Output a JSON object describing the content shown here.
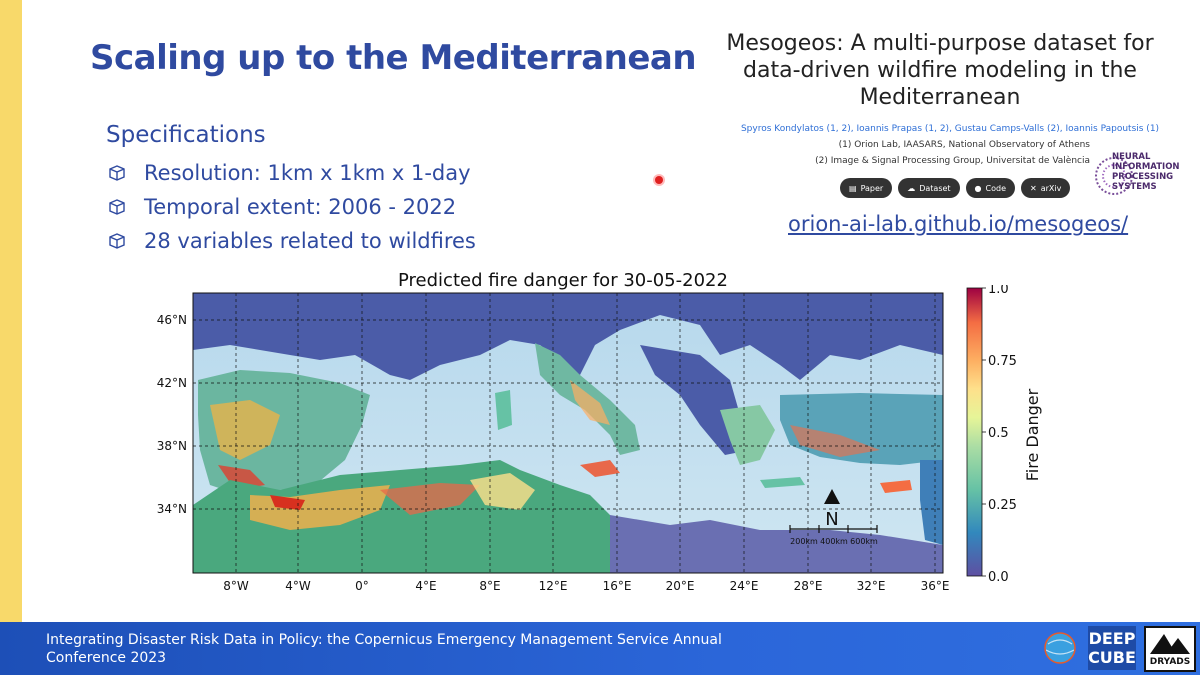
{
  "slide": {
    "title": "Scaling up to the Mediterranean",
    "specifications": {
      "heading": "Specifications",
      "items": [
        "Resolution: 1km x 1km x 1-day",
        "Temporal extent: 2006 - 2022",
        "28 variables related to wildfires"
      ]
    }
  },
  "paper": {
    "title_lines": [
      "Mesogeos: A multi-purpose dataset for",
      "data-driven wildfire modeling in the",
      "Mediterranean"
    ],
    "authors": "Spyros Kondylatos (1, 2), Ioannis Prapas (1, 2), Gustau Camps-Valls (2), Ioannis Papoutsis (1)",
    "affiliation_1": "(1) Orion Lab, IAASARS, National Observatory of Athens",
    "affiliation_2": "(2) Image & Signal Processing Group, Universitat de València",
    "buttons": [
      {
        "label": "Paper",
        "icon": "document-icon"
      },
      {
        "label": "Dataset",
        "icon": "cloud-icon"
      },
      {
        "label": "Code",
        "icon": "github-icon"
      },
      {
        "label": "arXiv",
        "icon": "arxiv-icon"
      }
    ],
    "link": "orion-ai-lab.github.io/mesogeos/",
    "neurips_lines": [
      "NEURAL",
      "INFORMATION",
      "PROCESSING",
      "SYSTEMS"
    ]
  },
  "map": {
    "title": "Predicted fire danger for 30-05-2022",
    "lat_ticks": [
      "46°N",
      "42°N",
      "38°N",
      "34°N"
    ],
    "lon_ticks": [
      "8°W",
      "4°W",
      "0°",
      "4°E",
      "8°E",
      "12°E",
      "16°E",
      "20°E",
      "24°E",
      "28°E",
      "32°E",
      "36°E"
    ],
    "colorbar": {
      "label": "Fire Danger",
      "ticks": [
        "1.0",
        "0.75",
        "0.5",
        "0.25",
        "0.0"
      ]
    },
    "north_label": "N",
    "scale_labels": [
      "200km",
      "400km",
      "600km"
    ]
  },
  "footer": {
    "text": "Integrating Disaster Risk Data in Policy: the Copernicus Emergency Management Service Annual Conference 2023",
    "logo_deep_lines": [
      "DEEP",
      "CUBE"
    ],
    "logo_dryads": "DRYADS"
  },
  "colors": {
    "title_blue": "#2f4aa0",
    "footer_blue": "#2b66d9",
    "accent_yellow": "#f8d96a"
  }
}
